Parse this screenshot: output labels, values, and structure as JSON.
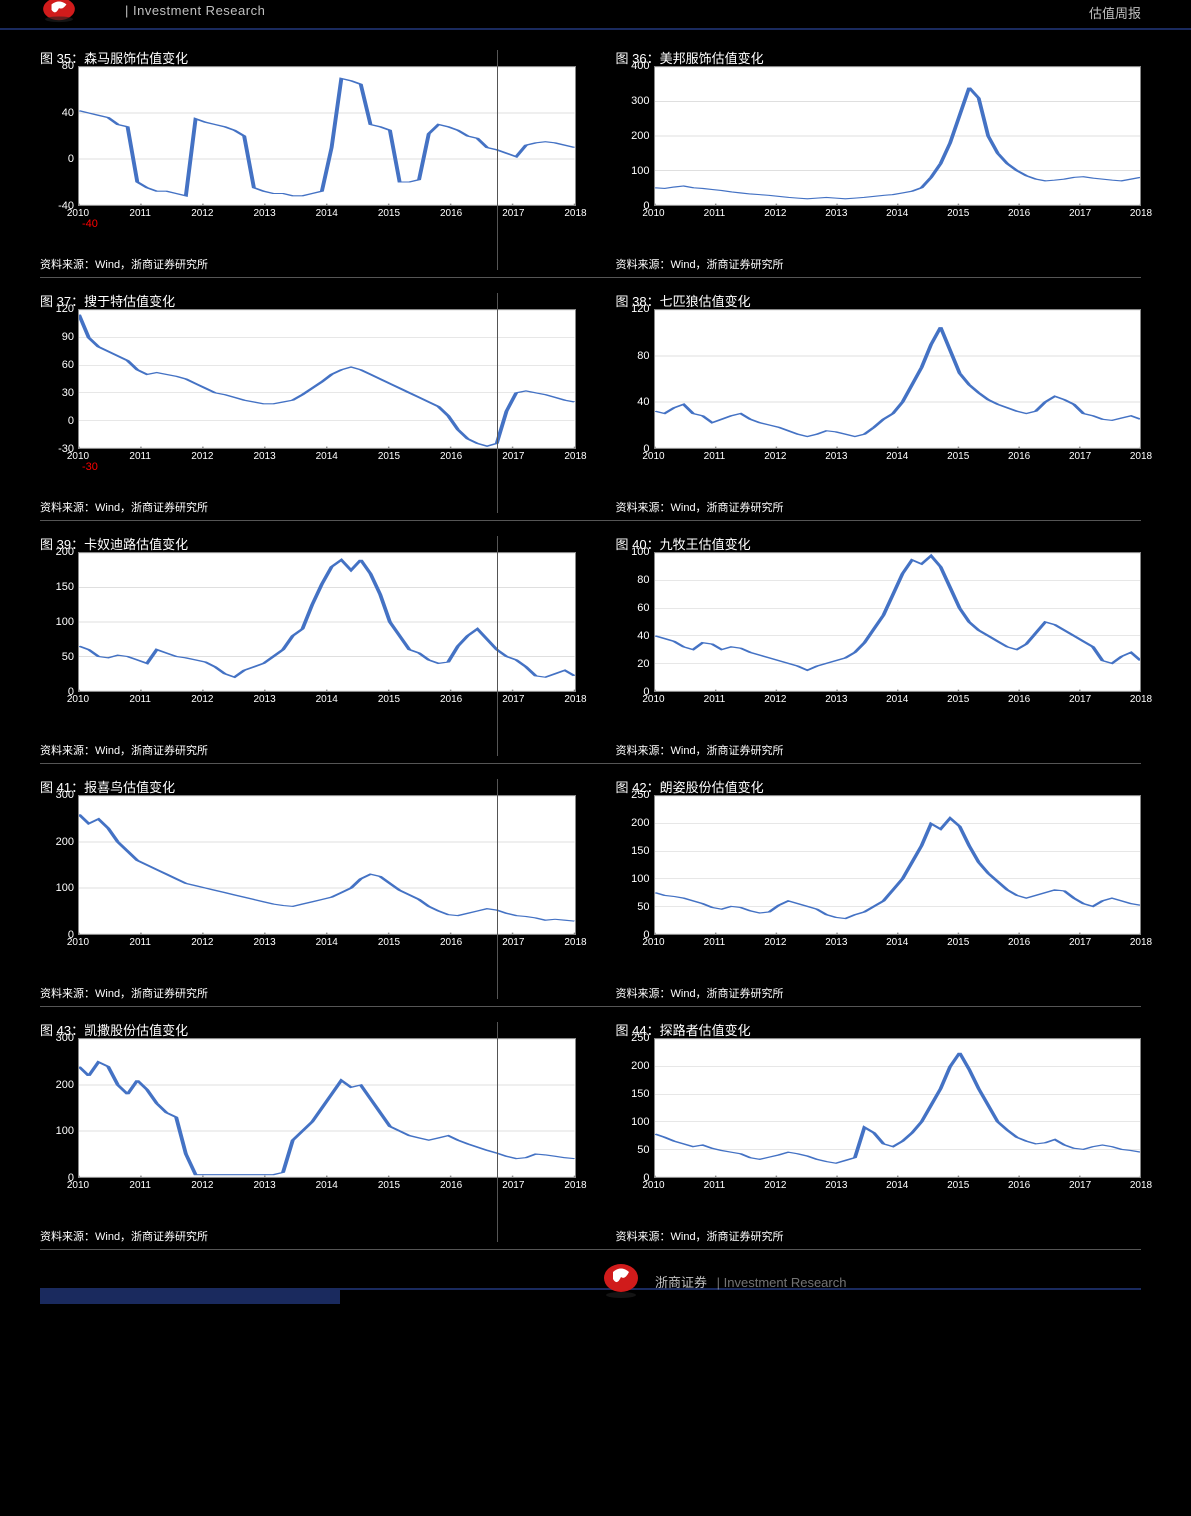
{
  "header": {
    "left": "| Investment Research",
    "right": "估值周报"
  },
  "footer": {
    "brand": "浙商证券",
    "tagline": "| Investment Research"
  },
  "common": {
    "source": "资料来源：Wind，浙商证券研究所",
    "xticks": [
      "2010",
      "2011",
      "2012",
      "2013",
      "2014",
      "2015",
      "2016",
      "2017",
      "2018"
    ],
    "line_color": "#4472c4",
    "grid_color": "#bfbfbf",
    "plot_bg": "#ffffff",
    "page_bg": "#000000",
    "accent_color": "#1a2a5e",
    "red": "#ff0000",
    "fontsize_title": 13,
    "fontsize_axis": 11
  },
  "charts": [
    {
      "id": "c1",
      "title": "图 35：森马服饰估值变化",
      "ymin": -40,
      "ymax": 80,
      "ystep": 40,
      "red_label": "-40",
      "data": [
        42,
        40,
        38,
        36,
        30,
        28,
        -20,
        -25,
        -28,
        -28,
        -30,
        -32,
        35,
        32,
        30,
        28,
        25,
        20,
        -25,
        -28,
        -30,
        -30,
        -32,
        -32,
        -30,
        -28,
        10,
        70,
        68,
        65,
        30,
        28,
        25,
        -20,
        -20,
        -18,
        22,
        30,
        28,
        25,
        20,
        18,
        10,
        8,
        5,
        2,
        12,
        14,
        15,
        14,
        12,
        10
      ]
    },
    {
      "id": "c2",
      "title": "图 36：美邦服饰估值变化",
      "ymin": 0,
      "ymax": 400,
      "ystep": 100,
      "data": [
        50,
        48,
        52,
        55,
        50,
        48,
        45,
        42,
        38,
        35,
        32,
        30,
        28,
        25,
        22,
        20,
        18,
        20,
        22,
        20,
        18,
        20,
        22,
        25,
        28,
        30,
        35,
        40,
        50,
        80,
        120,
        180,
        260,
        340,
        310,
        200,
        150,
        120,
        100,
        85,
        75,
        70,
        72,
        75,
        80,
        82,
        78,
        75,
        72,
        70,
        75,
        80
      ]
    },
    {
      "id": "c3",
      "title": "图 37：搜于特估值变化",
      "ymin": -30,
      "ymax": 120,
      "ystep": 30,
      "red_label": "-30",
      "data": [
        115,
        90,
        80,
        75,
        70,
        65,
        55,
        50,
        52,
        50,
        48,
        45,
        40,
        35,
        30,
        28,
        25,
        22,
        20,
        18,
        18,
        20,
        22,
        28,
        35,
        42,
        50,
        55,
        58,
        55,
        50,
        45,
        40,
        35,
        30,
        25,
        20,
        15,
        5,
        -10,
        -20,
        -25,
        -28,
        -25,
        10,
        30,
        32,
        30,
        28,
        25,
        22,
        20
      ]
    },
    {
      "id": "c4",
      "title": "图 38：七匹狼估值变化",
      "ymin": 0,
      "ymax": 120,
      "ystep": 40,
      "data": [
        32,
        30,
        35,
        38,
        30,
        28,
        22,
        25,
        28,
        30,
        25,
        22,
        20,
        18,
        15,
        12,
        10,
        12,
        15,
        14,
        12,
        10,
        12,
        18,
        25,
        30,
        40,
        55,
        70,
        90,
        105,
        85,
        65,
        55,
        48,
        42,
        38,
        35,
        32,
        30,
        32,
        40,
        45,
        42,
        38,
        30,
        28,
        25,
        24,
        26,
        28,
        25
      ]
    },
    {
      "id": "c5",
      "title": "图 39：卡奴迪路估值变化",
      "ymin": 0,
      "ymax": 200,
      "ystep": 50,
      "data": [
        65,
        60,
        50,
        48,
        52,
        50,
        45,
        40,
        60,
        55,
        50,
        48,
        45,
        42,
        35,
        25,
        20,
        30,
        35,
        40,
        50,
        60,
        80,
        90,
        125,
        155,
        180,
        190,
        175,
        190,
        170,
        140,
        100,
        80,
        60,
        55,
        45,
        40,
        42,
        65,
        80,
        90,
        75,
        60,
        50,
        45,
        35,
        22,
        20,
        25,
        30,
        22
      ]
    },
    {
      "id": "c6",
      "title": "图 40：九牧王估值变化",
      "ymin": 0,
      "ymax": 100,
      "ystep": 20,
      "data": [
        40,
        38,
        36,
        32,
        30,
        35,
        34,
        30,
        32,
        31,
        28,
        26,
        24,
        22,
        20,
        18,
        15,
        18,
        20,
        22,
        24,
        28,
        35,
        45,
        55,
        70,
        85,
        95,
        92,
        98,
        90,
        75,
        60,
        50,
        44,
        40,
        36,
        32,
        30,
        34,
        42,
        50,
        48,
        44,
        40,
        36,
        32,
        22,
        20,
        25,
        28,
        22
      ]
    },
    {
      "id": "c7",
      "title": "图 41：报喜鸟估值变化",
      "ymin": 0,
      "ymax": 300,
      "ystep": 100,
      "data": [
        260,
        240,
        250,
        230,
        200,
        180,
        160,
        150,
        140,
        130,
        120,
        110,
        105,
        100,
        95,
        90,
        85,
        80,
        75,
        70,
        65,
        62,
        60,
        65,
        70,
        75,
        80,
        90,
        100,
        120,
        130,
        125,
        110,
        95,
        85,
        75,
        60,
        50,
        42,
        40,
        45,
        50,
        55,
        52,
        45,
        40,
        38,
        35,
        30,
        32,
        30,
        28
      ]
    },
    {
      "id": "c8",
      "title": "图 42：朗姿股份估值变化",
      "ymin": 0,
      "ymax": 250,
      "ystep": 50,
      "data": [
        75,
        70,
        68,
        65,
        60,
        55,
        48,
        45,
        50,
        48,
        42,
        38,
        40,
        52,
        60,
        55,
        50,
        45,
        35,
        30,
        28,
        35,
        40,
        50,
        60,
        80,
        100,
        130,
        160,
        200,
        190,
        210,
        195,
        160,
        130,
        110,
        95,
        80,
        70,
        65,
        70,
        75,
        80,
        78,
        65,
        55,
        50,
        60,
        65,
        60,
        55,
        52
      ]
    },
    {
      "id": "c9",
      "title": "图 43：凯撒股份估值变化",
      "ymin": 0,
      "ymax": 300,
      "ystep": 100,
      "data": [
        240,
        220,
        250,
        240,
        200,
        180,
        210,
        190,
        160,
        140,
        130,
        50,
        5,
        5,
        5,
        5,
        5,
        5,
        5,
        5,
        5,
        10,
        80,
        100,
        120,
        150,
        180,
        210,
        195,
        200,
        170,
        140,
        110,
        100,
        90,
        85,
        80,
        85,
        90,
        80,
        72,
        65,
        58,
        52,
        45,
        40,
        42,
        50,
        48,
        45,
        42,
        40
      ]
    },
    {
      "id": "c10",
      "title": "图 44：探路者估值变化",
      "ymin": 0,
      "ymax": 250,
      "ystep": 50,
      "data": [
        78,
        72,
        65,
        60,
        55,
        58,
        52,
        48,
        45,
        42,
        35,
        32,
        36,
        40,
        45,
        42,
        38,
        32,
        28,
        25,
        30,
        35,
        90,
        80,
        60,
        55,
        65,
        80,
        100,
        130,
        160,
        200,
        225,
        195,
        160,
        130,
        100,
        85,
        72,
        65,
        60,
        62,
        68,
        58,
        52,
        50,
        55,
        58,
        55,
        50,
        48,
        45
      ]
    }
  ]
}
